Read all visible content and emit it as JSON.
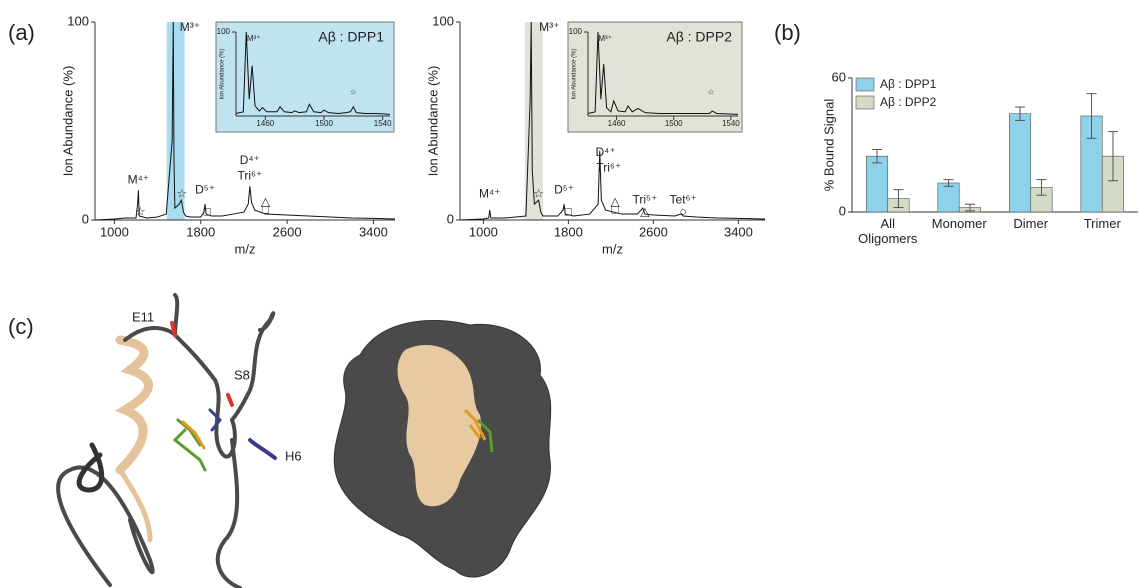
{
  "panel_labels": [
    "(a)",
    "(b)",
    "(c)"
  ],
  "structure_labels": [
    "E11",
    "S8",
    "H6"
  ],
  "chart_data": [
    {
      "type": "line",
      "xlabel": "m/z",
      "ylabel": "Ion Abundance (%)",
      "xlim": [
        820,
        3600
      ],
      "xticks": [
        1000,
        1800,
        2600,
        3400
      ],
      "ylim": [
        0,
        100
      ],
      "yticks": [
        0,
        100
      ],
      "highlight_range": [
        1485,
        1650
      ],
      "highlight_color": "#a8dbef",
      "series": [
        {
          "color": "#111111",
          "x": [
            820,
            1000,
            1100,
            1200,
            1215,
            1222,
            1230,
            1300,
            1400,
            1480,
            1535,
            1545,
            1552,
            1560,
            1600,
            1620,
            1640,
            1660,
            1700,
            1800,
            1830,
            1840,
            1850,
            1900,
            2000,
            2100,
            2200,
            2240,
            2255,
            2270,
            2300,
            2400,
            2600,
            2800,
            3000,
            3200,
            3400,
            3600
          ],
          "values": [
            0,
            0.5,
            1,
            1,
            8,
            15,
            2,
            1,
            1.5,
            3,
            40,
            100,
            30,
            6,
            8,
            10,
            4,
            2,
            1.5,
            1.5,
            4,
            8,
            3,
            2,
            2,
            3,
            4,
            8,
            17,
            9,
            5,
            3,
            2.5,
            2,
            1.5,
            1,
            0.8,
            0.5
          ]
        }
      ],
      "annotations": [
        {
          "text": "M⁴⁺",
          "x": 1222,
          "y": 20
        },
        {
          "text": "☆",
          "x": 1240,
          "y": 4
        },
        {
          "text": "M³⁺",
          "x": 1700,
          "y": 97
        },
        {
          "text": "☆",
          "x": 1625,
          "y": 13
        },
        {
          "text": "D⁵⁺",
          "x": 1840,
          "y": 15
        },
        {
          "text": "□",
          "x": 1860,
          "y": 4
        },
        {
          "text": "D⁴⁺",
          "x": 2255,
          "y": 30
        },
        {
          "text": "Tri⁶⁺",
          "x": 2255,
          "y": 22
        },
        {
          "text": "△",
          "x": 2400,
          "y": 9
        },
        {
          "text": "□",
          "x": 2400,
          "y": 5
        }
      ]
    },
    {
      "type": "line",
      "title": "Aβ : DPP1",
      "ylabel": "Ion Abundance (%)",
      "background": "#bfe3f1",
      "xlim": [
        1440,
        1545
      ],
      "xticks": [
        1460,
        1500,
        1540
      ],
      "ylim": [
        0,
        100
      ],
      "yticks": [
        100
      ],
      "series": [
        {
          "color": "#111111",
          "x": [
            1440,
            1445,
            1447,
            1449,
            1451,
            1453,
            1456,
            1458,
            1461,
            1468,
            1470,
            1473,
            1478,
            1480,
            1483,
            1488,
            1490,
            1493,
            1498,
            1500,
            1503,
            1510,
            1515,
            1518,
            1520,
            1522,
            1528,
            1535,
            1545
          ],
          "values": [
            3,
            5,
            100,
            20,
            60,
            12,
            6,
            10,
            5,
            5,
            11,
            5,
            4,
            6,
            4,
            5,
            14,
            5,
            4,
            7,
            4,
            3,
            4,
            5,
            11,
            4,
            3,
            3,
            2
          ]
        }
      ],
      "annotations": [
        {
          "text": "M³⁺",
          "x": 1452,
          "y": 92
        },
        {
          "text": "☆",
          "x": 1520,
          "y": 28
        }
      ]
    },
    {
      "type": "line",
      "xlabel": "m/z",
      "ylabel": "Ion Abundance (%)",
      "xlim": [
        780,
        3650
      ],
      "xticks": [
        1000,
        1800,
        2600,
        3400
      ],
      "ylim": [
        0,
        100
      ],
      "yticks": [
        0,
        100
      ],
      "highlight_range": [
        1390,
        1560
      ],
      "highlight_color": "#dfe3d8",
      "series": [
        {
          "color": "#111111",
          "x": [
            780,
            1000,
            1050,
            1060,
            1070,
            1200,
            1400,
            1440,
            1450,
            1460,
            1480,
            1520,
            1540,
            1560,
            1600,
            1700,
            1750,
            1760,
            1770,
            1850,
            2000,
            2080,
            2095,
            2110,
            2150,
            2300,
            2450,
            2500,
            2520,
            2600,
            2800,
            2860,
            2880,
            3000,
            3200,
            3400,
            3650
          ],
          "values": [
            0,
            0.5,
            1,
            5,
            1,
            1,
            2,
            60,
            100,
            25,
            8,
            10,
            4,
            2,
            2,
            2,
            5,
            8,
            3,
            2,
            3,
            8,
            35,
            10,
            5,
            3,
            3,
            6,
            3,
            2.5,
            2,
            3,
            2,
            1.5,
            1,
            0.8,
            0.5
          ]
        }
      ],
      "annotations": [
        {
          "text": "M⁴⁺",
          "x": 1060,
          "y": 13
        },
        {
          "text": "M³⁺",
          "x": 1620,
          "y": 97
        },
        {
          "text": "☆",
          "x": 1520,
          "y": 13
        },
        {
          "text": "D⁵⁺",
          "x": 1760,
          "y": 15
        },
        {
          "text": "□",
          "x": 1800,
          "y": 4
        },
        {
          "text": "D⁴⁺",
          "x": 2150,
          "y": 34
        },
        {
          "text": "Tri⁶⁺",
          "x": 2180,
          "y": 26
        },
        {
          "text": "△",
          "x": 2240,
          "y": 9
        },
        {
          "text": "□",
          "x": 2240,
          "y": 5
        },
        {
          "text": "Tri⁵⁺",
          "x": 2520,
          "y": 10
        },
        {
          "text": "△",
          "x": 2520,
          "y": 4
        },
        {
          "text": "Tet⁶⁺",
          "x": 2880,
          "y": 10
        },
        {
          "text": "○",
          "x": 2880,
          "y": 4
        }
      ]
    },
    {
      "type": "line",
      "title": "Aβ : DPP2",
      "ylabel": "Ion Abundance (%)",
      "background": "#dfe3d8",
      "xlim": [
        1440,
        1545
      ],
      "xticks": [
        1460,
        1500,
        1540
      ],
      "ylim": [
        0,
        100
      ],
      "yticks": [
        100
      ],
      "series": [
        {
          "color": "#111111",
          "x": [
            1440,
            1445,
            1447,
            1449,
            1451,
            1453,
            1456,
            1458,
            1461,
            1466,
            1468,
            1471,
            1475,
            1480,
            1490,
            1500,
            1510,
            1520,
            1525,
            1527,
            1530,
            1545
          ],
          "values": [
            3,
            5,
            100,
            20,
            62,
            10,
            5,
            18,
            6,
            5,
            12,
            5,
            9,
            4,
            3,
            3,
            3,
            3,
            3,
            6,
            3,
            2
          ]
        }
      ],
      "annotations": [
        {
          "text": "M³⁺",
          "x": 1452,
          "y": 92
        },
        {
          "text": "☆",
          "x": 1526,
          "y": 28
        }
      ]
    },
    {
      "type": "bar",
      "ylabel": "% Bound Signal",
      "categories": [
        "All Oligomers",
        "Monomer",
        "Dimer",
        "Trimer"
      ],
      "ylim": [
        0,
        60
      ],
      "yticks": [
        0,
        60
      ],
      "legend": "upper left",
      "series": [
        {
          "name": "Aβ : DPP1",
          "color": "#8ed2ea",
          "values": [
            25,
            13,
            44,
            43
          ],
          "errors": [
            3,
            1.5,
            3,
            10
          ]
        },
        {
          "name": "Aβ : DPP2",
          "color": "#d3dac6",
          "values": [
            6,
            2,
            11,
            25
          ],
          "errors": [
            4,
            1.5,
            3.5,
            11
          ]
        }
      ]
    }
  ]
}
